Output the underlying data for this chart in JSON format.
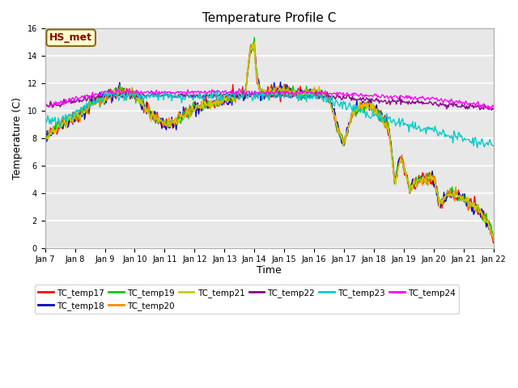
{
  "title": "Temperature Profile C",
  "xlabel": "Time",
  "ylabel": "Temperature (C)",
  "ylim": [
    0,
    16
  ],
  "annotation_text": "HS_met",
  "annotation_color": "#8B0000",
  "annotation_bg": "#FFFFCC",
  "annotation_edge": "#8B6914",
  "plot_bg": "#E8E8E8",
  "fig_bg": "#FFFFFF",
  "series": {
    "TC_temp17": {
      "color": "#FF0000"
    },
    "TC_temp18": {
      "color": "#0000CC"
    },
    "TC_temp19": {
      "color": "#00CC00"
    },
    "TC_temp20": {
      "color": "#FF8800"
    },
    "TC_temp21": {
      "color": "#CCCC00"
    },
    "TC_temp22": {
      "color": "#880088"
    },
    "TC_temp23": {
      "color": "#00CCCC"
    },
    "TC_temp24": {
      "color": "#FF00FF"
    }
  },
  "x_tick_labels": [
    "Jan 7",
    "Jan 8",
    "Jan 9",
    "Jan 10",
    "Jan 11",
    "Jan 12",
    "Jan 13",
    "Jan 14",
    "Jan 15",
    "Jan 16",
    "Jan 17",
    "Jan 18",
    "Jan 19",
    "Jan 20",
    "Jan 21",
    "Jan 22"
  ],
  "yticks": [
    0,
    2,
    4,
    6,
    8,
    10,
    12,
    14,
    16
  ],
  "title_fontsize": 11,
  "tick_fontsize": 7,
  "ylabel_fontsize": 9,
  "xlabel_fontsize": 9
}
